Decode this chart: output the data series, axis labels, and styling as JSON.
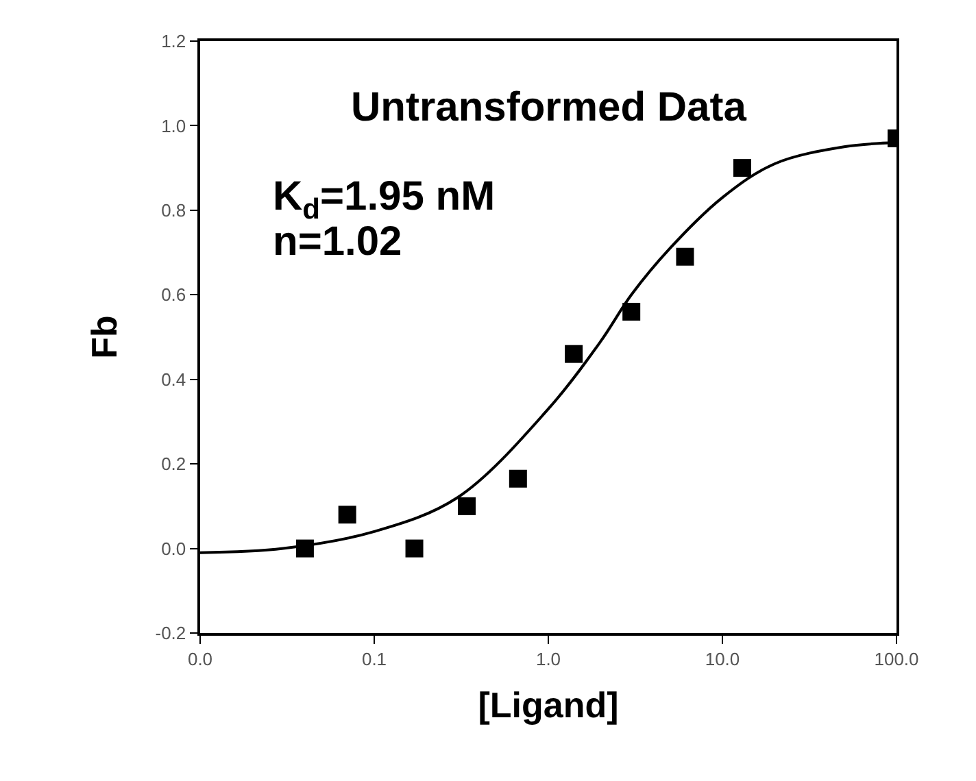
{
  "chart_data": {
    "type": "scatter",
    "xlabel": "[Ligand]",
    "ylabel": "Fb",
    "log": "x",
    "annotations": [
      "Untransformed Data",
      "K$_{d}$=1.95 nM",
      "n=1.02"
    ],
    "xlim": [
      0.01,
      100
    ],
    "xticks": [
      {
        "value": 0.01,
        "label": "0.0"
      },
      0.1,
      {
        "value": 1,
        "label": "1.0"
      },
      {
        "value": 10,
        "label": "10.0"
      },
      {
        "value": 100,
        "label": "100.0"
      }
    ],
    "ylim": [
      -0.2,
      1.2
    ],
    "yticks": [
      -0.2,
      {
        "value": 0,
        "label": "0.0"
      },
      0.2,
      0.4,
      0.6,
      0.8,
      {
        "value": 1,
        "label": "1.0"
      },
      1.2
    ],
    "series": [
      {
        "marker": "square",
        "color": "#000000",
        "x": [
          0.04,
          0.07,
          0.17,
          0.34,
          0.67,
          1.4,
          3.0,
          6.1,
          13,
          100
        ],
        "values": [
          0.0,
          0.08,
          0.0,
          0.1,
          0.165,
          0.46,
          0.56,
          0.69,
          0.9,
          0.97
        ]
      },
      {
        "type": "line",
        "marker": "none",
        "line_style": "solid",
        "color": "#000000",
        "x": [
          0.01,
          0.03,
          0.1,
          0.3,
          1,
          2,
          3,
          5,
          10,
          20,
          50,
          100
        ],
        "values": [
          -0.01,
          0.0,
          0.04,
          0.12,
          0.33,
          0.49,
          0.6,
          0.71,
          0.83,
          0.91,
          0.95,
          0.96
        ]
      }
    ]
  }
}
